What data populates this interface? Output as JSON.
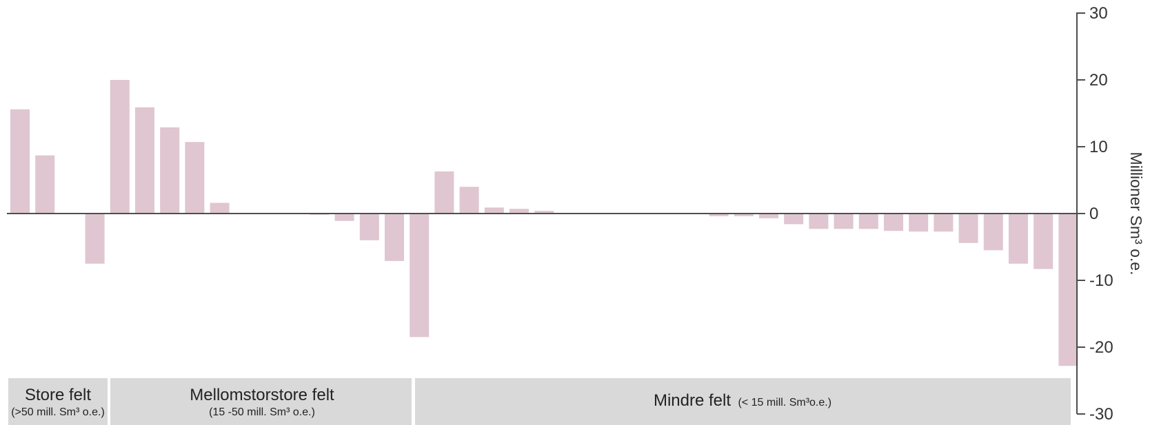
{
  "colors": {
    "bar": "#dfc6d0",
    "axis": "#4d4d4d",
    "band": "#d9d9d9",
    "text": "#333333"
  },
  "chart_data": {
    "type": "bar",
    "title": "",
    "xlabel": "",
    "ylabel": "Millioner Sm³ o.e.",
    "ylim": [
      -30,
      30
    ],
    "yticks": [
      30,
      20,
      10,
      0,
      -10,
      -20,
      -30
    ],
    "y_axis_side": "right",
    "grid": false,
    "legend": "none",
    "values": [
      15.6,
      8.7,
      0.1,
      -7.5,
      20.0,
      15.9,
      12.9,
      10.7,
      1.6,
      0,
      0,
      0,
      -0.2,
      -1.1,
      -4.0,
      -7.1,
      -18.5,
      6.3,
      4.0,
      0.9,
      0.7,
      0.4,
      0.1,
      0,
      -0.1,
      -0.1,
      -0.1,
      -0.1,
      -0.4,
      -0.4,
      -0.7,
      -1.6,
      -2.3,
      -2.3,
      -2.3,
      -2.6,
      -2.7,
      -2.7,
      -4.4,
      -5.5,
      -7.5,
      -8.3,
      -22.8
    ],
    "groups": [
      {
        "name": "Store felt",
        "detail": "(>50 mill. Sm³ o.e.)",
        "start": 0,
        "end": 3
      },
      {
        "name": "Mellomstorstore felt",
        "detail": "(15 -50 mill. Sm³ o.e.)",
        "start": 4,
        "end": 16
      },
      {
        "name": "Mindre felt",
        "detail": "(< 15 mill. Sm³o.e.)",
        "start": 17,
        "end": 42
      }
    ]
  }
}
